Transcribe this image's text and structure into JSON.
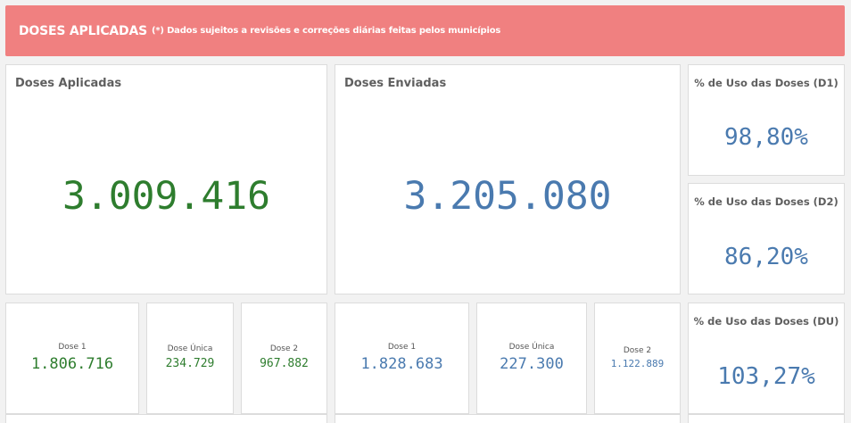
{
  "banner": {
    "title": "DOSES APLICADAS",
    "subtitle": "(*) Dados sujeitos a revisões e correções diárias feitas pelos municípios",
    "color": "#f08080"
  },
  "aplicadas": {
    "title": "Doses Aplicadas",
    "value": "3.009.416",
    "color": "#2e7d2e",
    "breakdown": [
      {
        "label": "Dose 1",
        "value": "1.806.716"
      },
      {
        "label": "Dose Única",
        "value": "234.729"
      },
      {
        "label": "Dose 2",
        "value": "967.882"
      }
    ]
  },
  "enviadas": {
    "title": "Doses Enviadas",
    "value": "3.205.080",
    "color": "#4a7aaf",
    "breakdown": [
      {
        "label": "Dose 1",
        "value": "1.828.683"
      },
      {
        "label": "Dose Única",
        "value": "227.300"
      },
      {
        "label": "Dose 2",
        "value": "1.122.889"
      }
    ]
  },
  "uso": [
    {
      "title": "% de Uso das Doses (D1)",
      "value": "98,80%"
    },
    {
      "title": "% de Uso das Doses (D2)",
      "value": "86,20%"
    },
    {
      "title": "% de Uso das Doses (DU)",
      "value": "103,27%"
    }
  ]
}
